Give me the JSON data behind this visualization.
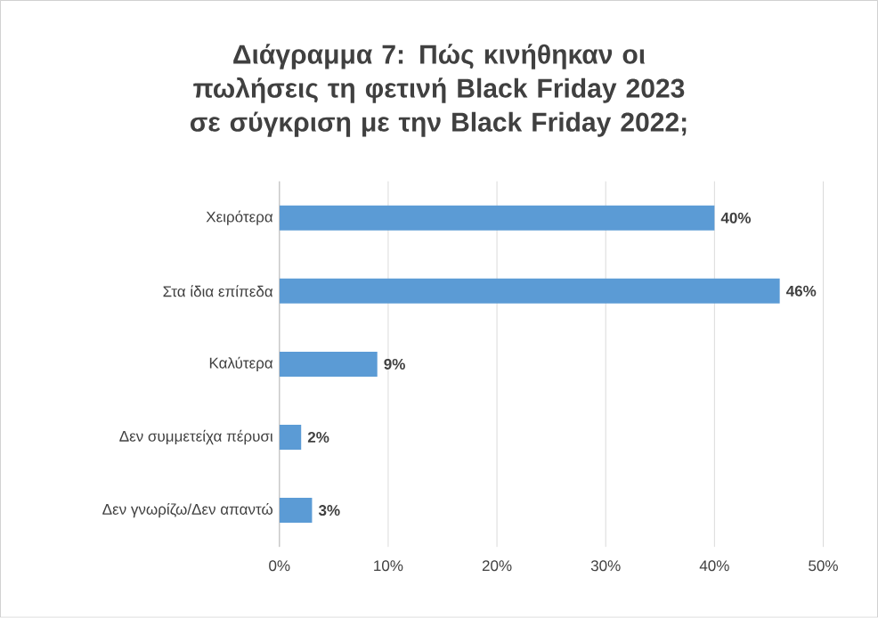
{
  "chart_data": {
    "type": "bar",
    "orientation": "horizontal",
    "title": "Διάγραμμα 7: Πώς κινήθηκαν οι πωλήσεις τη φετινή Black Friday 2023 σε σύγκριση με την Black Friday 2022;",
    "categories": [
      "Χειρότερα",
      "Στα ίδια επίπεδα",
      "Καλύτερα",
      "Δεν συμμετείχα πέρυσι",
      "Δεν γνωρίζω/Δεν απαντώ"
    ],
    "values": [
      40,
      46,
      9,
      2,
      3
    ],
    "value_labels": [
      "40%",
      "46%",
      "9%",
      "2%",
      "3%"
    ],
    "color": "#5b9bd5",
    "xlim": [
      0,
      50
    ],
    "xticks": [
      {
        "value": 0,
        "label": "0%"
      },
      {
        "value": 10,
        "label": "10%"
      },
      {
        "value": 20,
        "label": "20%"
      },
      {
        "value": 30,
        "label": "30%"
      },
      {
        "value": 40,
        "label": "40%"
      },
      {
        "value": 50,
        "label": "50%"
      }
    ],
    "grid": "x"
  }
}
